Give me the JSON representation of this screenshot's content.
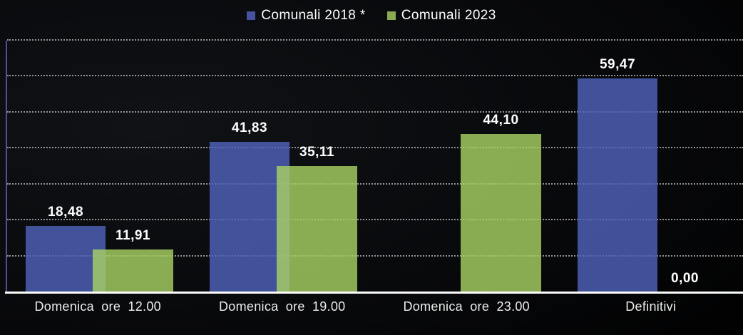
{
  "chart_data": {
    "type": "bar",
    "title": "",
    "legend_position": "top-center",
    "categories": [
      "Domenica ore 12.00",
      "Domenica ore 19.00",
      "Domenica ore 23.00",
      "Definitivi"
    ],
    "series": [
      {
        "name": "Comunali 2018 *",
        "swatch_color": "#46529e",
        "fill_rgba": "rgba(80,100,190,0.8)",
        "values": [
          18.48,
          41.83,
          null,
          59.47
        ],
        "value_labels": [
          "18,48",
          "41,83",
          null,
          "59,47"
        ]
      },
      {
        "name": "Comunali 2023",
        "swatch_color": "#8bab50",
        "fill_rgba": "rgba(170,212,100,0.8)",
        "values": [
          11.91,
          35.11,
          44.1,
          0
        ],
        "value_labels": [
          "11,91",
          "35,11",
          "44,10",
          "0,00"
        ]
      }
    ],
    "ylim": [
      0,
      70
    ],
    "gridline_step": 10,
    "grid": "horizontal-dotted",
    "y_tick_labels_visible": false,
    "decimal_separator": ","
  },
  "colors": {
    "background": "#000000",
    "axis_line": "#fbfbfb",
    "plot_left_border": "#4b5596",
    "gridline": "rgba(215,215,215,0.68)",
    "data_label": "#ffffff",
    "category_label": "#ececec",
    "legend_text": "#ffffff"
  }
}
